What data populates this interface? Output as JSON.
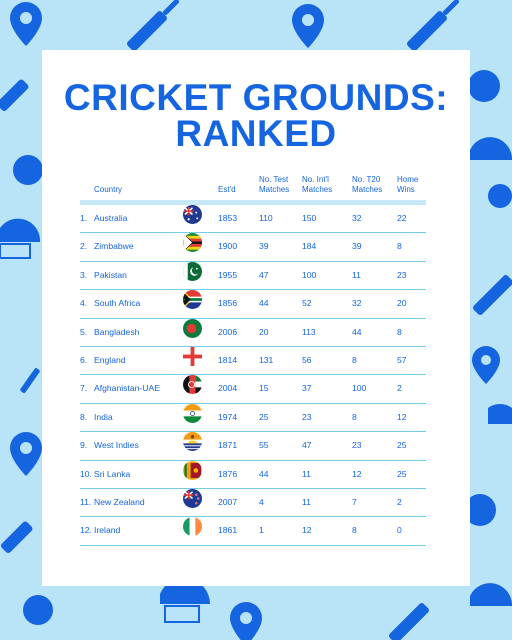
{
  "title": {
    "line1": "CRICKET GROUNDS:",
    "line2": "RANKED"
  },
  "columns": {
    "country": "Country",
    "established": "Est'd",
    "test_matches": [
      "No. Test",
      "Matches"
    ],
    "intl_matches": [
      "No. Int'l",
      "Matches"
    ],
    "t20_matches": [
      "No. T20",
      "Matches"
    ],
    "home_wins": [
      "Home",
      "Wins"
    ]
  },
  "rows": [
    {
      "rank": "1.",
      "country": "Australia",
      "flag": "australia-flag-icon",
      "est": "1853",
      "test": "110",
      "intl": "150",
      "t20": "32",
      "home": "22"
    },
    {
      "rank": "2.",
      "country": "Zimbabwe",
      "flag": "zimbabwe-flag-icon",
      "est": "1900",
      "test": "39",
      "intl": "184",
      "t20": "39",
      "home": "8"
    },
    {
      "rank": "3.",
      "country": "Pakistan",
      "flag": "pakistan-flag-icon",
      "est": "1955",
      "test": "47",
      "intl": "100",
      "t20": "11",
      "home": "23"
    },
    {
      "rank": "4.",
      "country": "South Africa",
      "flag": "south-africa-flag-icon",
      "est": "1856",
      "test": "44",
      "intl": "52",
      "t20": "32",
      "home": "20"
    },
    {
      "rank": "5.",
      "country": "Bangladesh",
      "flag": "bangladesh-flag-icon",
      "est": "2006",
      "test": "20",
      "intl": "113",
      "t20": "44",
      "home": "8"
    },
    {
      "rank": "6.",
      "country": "England",
      "flag": "england-flag-icon",
      "est": "1814",
      "test": "131",
      "intl": "56",
      "t20": "8",
      "home": "57"
    },
    {
      "rank": "7.",
      "country": "Afghanistan-UAE",
      "flag": "afghanistan-uae-flag-icon",
      "est": "2004",
      "test": "15",
      "intl": "37",
      "t20": "100",
      "home": "2"
    },
    {
      "rank": "8.",
      "country": "India",
      "flag": "india-flag-icon",
      "est": "1974",
      "test": "25",
      "intl": "23",
      "t20": "8",
      "home": "12"
    },
    {
      "rank": "9.",
      "country": "West Indies",
      "flag": "west-indies-flag-icon",
      "est": "1871",
      "test": "55",
      "intl": "47",
      "t20": "23",
      "home": "25"
    },
    {
      "rank": "10.",
      "country": "Sri Lanka",
      "flag": "sri-lanka-flag-icon",
      "est": "1876",
      "test": "44",
      "intl": "11",
      "t20": "12",
      "home": "25"
    },
    {
      "rank": "11.",
      "country": "New Zealand",
      "flag": "new-zealand-flag-icon",
      "est": "2007",
      "test": "4",
      "intl": "11",
      "t20": "7",
      "home": "2"
    },
    {
      "rank": "12.",
      "country": "Ireland",
      "flag": "ireland-flag-icon",
      "est": "1861",
      "test": "1",
      "intl": "12",
      "t20": "8",
      "home": "0"
    }
  ],
  "colors": {
    "accent": "#1565e0",
    "background": "#b9e3f7",
    "divider": "#74cde6"
  }
}
